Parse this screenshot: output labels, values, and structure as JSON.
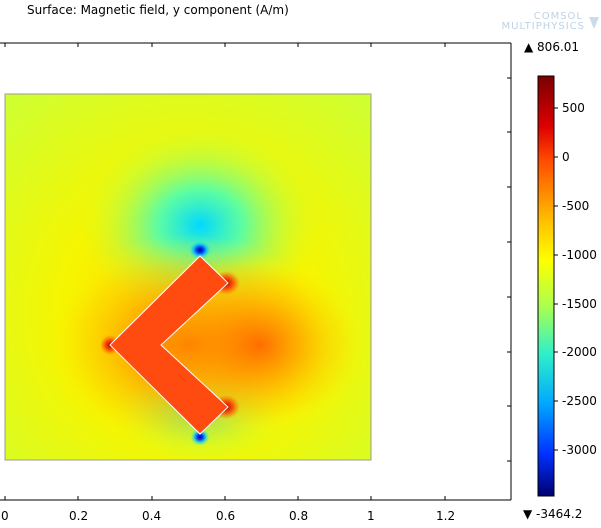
{
  "plot": {
    "title": "Surface: Magnetic field, y component (A/m)"
  },
  "logo": {
    "line1": "COMSOL",
    "line2": "MULTIPHYSICS"
  },
  "colorbar": {
    "max_label": "▲ 806.01",
    "min_label": "▼ -3464.2",
    "tick_labels": [
      "500",
      "0",
      "-500",
      "-1000",
      "-1500",
      "-2000",
      "-2500",
      "-3000"
    ]
  },
  "x_axis": {
    "tick_labels": [
      "0",
      "0.2",
      "0.4",
      "0.6",
      "0.8",
      "1",
      "1.2"
    ]
  },
  "chart_data": {
    "type": "heatmap",
    "title": "Surface: Magnetic field, y component (A/m)",
    "quantity": "Magnetic field, y component",
    "unit": "A/m",
    "range": {
      "min": -3464.2,
      "max": 806.01
    },
    "colorbar_ticks": [
      500,
      0,
      -500,
      -1000,
      -1500,
      -2000,
      -2500,
      -3000
    ],
    "x_ticks": [
      0,
      0.2,
      0.4,
      0.6,
      0.8,
      1,
      1.2
    ],
    "colors": {
      "max": "#8c0000",
      "high": "#ff3c00",
      "mid": "#ffff00",
      "low": "#00d0ff",
      "min": "#000080",
      "background_field": "#d2ff2a"
    }
  }
}
